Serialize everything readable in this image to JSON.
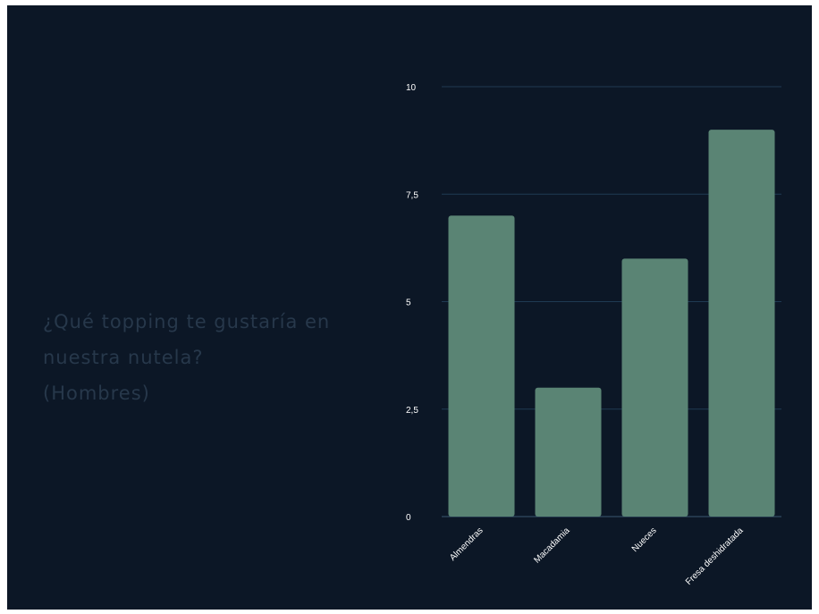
{
  "slide": {
    "question_lines": [
      "¿Qué topping te gustaría en",
      "nuestra nutela?",
      "(Hombres)"
    ]
  },
  "colors": {
    "background": "#0c1726",
    "bar": "#5a8474",
    "grid": "#1f3a52",
    "question_text": "#27384b"
  },
  "chart_data": {
    "type": "bar",
    "categories": [
      "Almendras",
      "Macadamia",
      "Nueces",
      "Fresa deshidratada"
    ],
    "values": [
      7,
      3,
      6,
      9
    ],
    "yticks": [
      "0",
      "2,5",
      "5",
      "7,5",
      "10"
    ],
    "ylim": [
      0,
      10
    ],
    "grid": true,
    "legend": "none"
  }
}
